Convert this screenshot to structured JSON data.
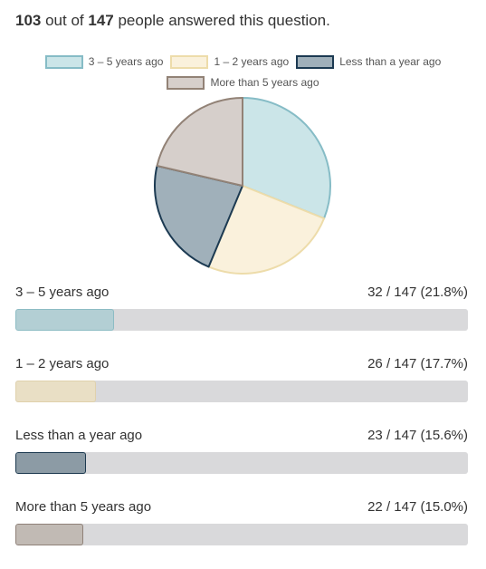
{
  "summary": {
    "answered": "103",
    "middle_text": " out of ",
    "total": "147",
    "suffix_text": " people answered this question."
  },
  "chart_data": {
    "type": "pie",
    "total": 147,
    "categories": [
      "3 – 5 years ago",
      "1 – 2 years ago",
      "Less than a year ago",
      "More than 5 years ago"
    ],
    "values": [
      32,
      26,
      23,
      22
    ],
    "percents": [
      21.8,
      17.7,
      15.6,
      15.0
    ],
    "count_labels": [
      "32 / 147 (21.8%)",
      "26 / 147 (17.7%)",
      "23 / 147 (15.6%)",
      "22 / 147 (15.0%)"
    ],
    "fill_colors": [
      "#cbe5e8",
      "#faf1dc",
      "#a0b0ba",
      "#d6cfcb"
    ],
    "stroke_colors": [
      "#86bcc6",
      "#eddcaa",
      "#1c3a52",
      "#928276"
    ],
    "bar_colors": [
      "#b3cfd4",
      "#e9dfc5",
      "#8c9ba5",
      "#c1bab4"
    ],
    "bar_border_colors": [
      "#8dbcc4",
      "#e0d1ac",
      "#1d3a50",
      "#8f8178"
    ],
    "legend_placement": "top-center"
  }
}
